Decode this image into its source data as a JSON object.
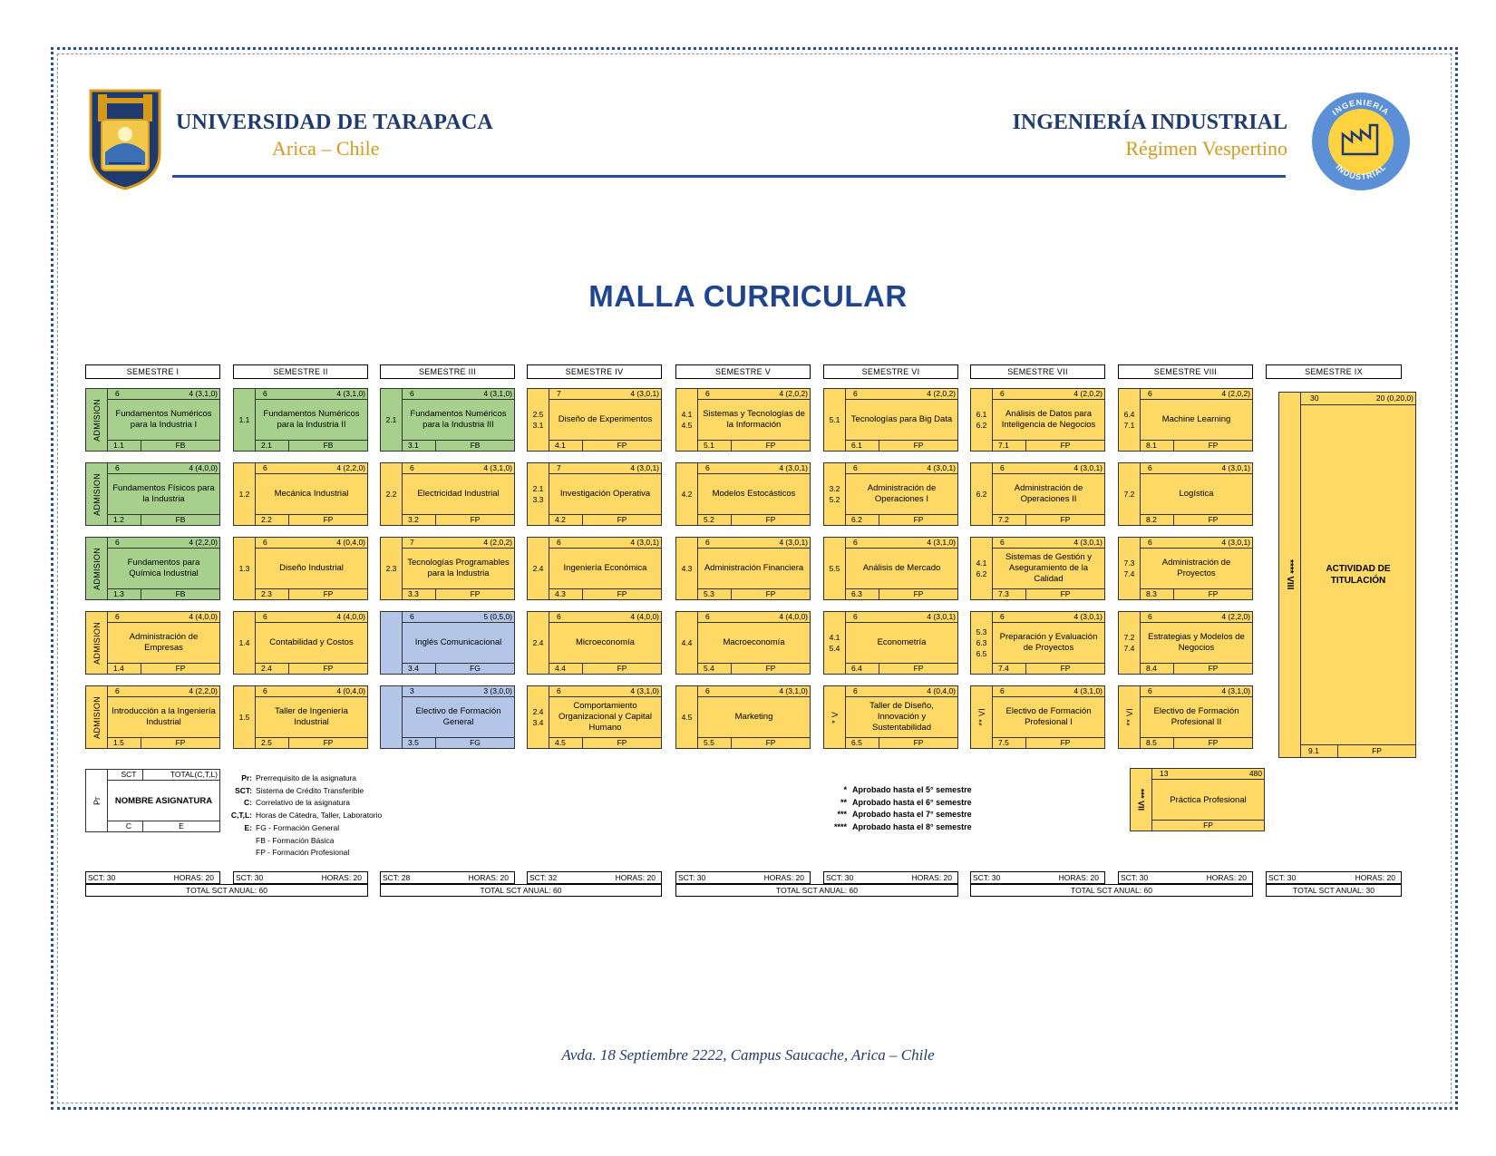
{
  "header": {
    "university": "UNIVERSIDAD DE TARAPACA",
    "location": "Arica – Chile",
    "program": "INGENIERÍA INDUSTRIAL",
    "regime": "Régimen Vespertino",
    "logo_right_text_top": "INGENIERIA",
    "logo_right_text_bottom": "INDUSTRIAL"
  },
  "title": "MALLA CURRICULAR",
  "semesters": [
    "SEMESTRE I",
    "SEMESTRE II",
    "SEMESTRE III",
    "SEMESTRE IV",
    "SEMESTRE V",
    "SEMESTRE VI",
    "SEMESTRE VII",
    "SEMESTRE VIII",
    "SEMESTRE IX"
  ],
  "courses": [
    {
      "col": 0,
      "row": 0,
      "color": "green",
      "left": "ADMISION",
      "vertical": true,
      "sct": "6",
      "hours": "4 (3,1,0)",
      "name": "Fundamentos Numéricos para la Industria I",
      "code": "1.1",
      "cat": "FB"
    },
    {
      "col": 0,
      "row": 1,
      "color": "green",
      "left": "ADMISION",
      "vertical": true,
      "sct": "6",
      "hours": "4 (4,0,0)",
      "name": "Fundamentos Físicos para la Industria",
      "code": "1.2",
      "cat": "FB"
    },
    {
      "col": 0,
      "row": 2,
      "color": "green",
      "left": "ADMISION",
      "vertical": true,
      "sct": "6",
      "hours": "4 (2,2,0)",
      "name": "Fundamentos para Química Industrial",
      "code": "1.3",
      "cat": "FB"
    },
    {
      "col": 0,
      "row": 3,
      "color": "yellow",
      "left": "ADMISION",
      "vertical": true,
      "sct": "6",
      "hours": "4 (4,0,0)",
      "name": "Administración de Empresas",
      "code": "1.4",
      "cat": "FP"
    },
    {
      "col": 0,
      "row": 4,
      "color": "yellow",
      "left": "ADMISION",
      "vertical": true,
      "sct": "6",
      "hours": "4 (2,2,0)",
      "name": "Introducción a la Ingeniería Industrial",
      "code": "1.5",
      "cat": "FP"
    },
    {
      "col": 1,
      "row": 0,
      "color": "green",
      "left": "1.1",
      "vertical": false,
      "sct": "6",
      "hours": "4 (3,1,0)",
      "name": "Fundamentos Numéricos para la Industria II",
      "code": "2.1",
      "cat": "FB"
    },
    {
      "col": 1,
      "row": 1,
      "color": "yellow",
      "left": "1.2",
      "vertical": false,
      "sct": "6",
      "hours": "4 (2,2,0)",
      "name": "Mecánica Industrial",
      "code": "2.2",
      "cat": "FP"
    },
    {
      "col": 1,
      "row": 2,
      "color": "yellow",
      "left": "1.3",
      "vertical": false,
      "sct": "6",
      "hours": "4 (0,4,0)",
      "name": "Diseño Industrial",
      "code": "2.3",
      "cat": "FP"
    },
    {
      "col": 1,
      "row": 3,
      "color": "yellow",
      "left": "1.4",
      "vertical": false,
      "sct": "6",
      "hours": "4 (4,0,0)",
      "name": "Contabilidad y Costos",
      "code": "2.4",
      "cat": "FP"
    },
    {
      "col": 1,
      "row": 4,
      "color": "yellow",
      "left": "1.5",
      "vertical": false,
      "sct": "6",
      "hours": "4 (0,4,0)",
      "name": "Taller de Ingeniería Industrial",
      "code": "2.5",
      "cat": "FP"
    },
    {
      "col": 2,
      "row": 0,
      "color": "green",
      "left": "2.1",
      "vertical": false,
      "sct": "6",
      "hours": "4 (3,1,0)",
      "name": "Fundamentos Numéricos para la Industria III",
      "code": "3.1",
      "cat": "FB"
    },
    {
      "col": 2,
      "row": 1,
      "color": "yellow",
      "left": "2.2",
      "vertical": false,
      "sct": "6",
      "hours": "4 (3,1,0)",
      "name": "Electricidad Industrial",
      "code": "3.2",
      "cat": "FP"
    },
    {
      "col": 2,
      "row": 2,
      "color": "yellow",
      "left": "2.3",
      "vertical": false,
      "sct": "7",
      "hours": "4 (2,0,2)",
      "name": "Tecnologías Programables para la Industria",
      "code": "3.3",
      "cat": "FP"
    },
    {
      "col": 2,
      "row": 3,
      "color": "blue",
      "left": "",
      "vertical": false,
      "sct": "6",
      "hours": "5 (0,5,0)",
      "name": "Inglés Comunicacional",
      "code": "3.4",
      "cat": "FG"
    },
    {
      "col": 2,
      "row": 4,
      "color": "blue",
      "left": "",
      "vertical": false,
      "sct": "3",
      "hours": "3 (3,0,0)",
      "name": "Electivo de Formación General",
      "code": "3.5",
      "cat": "FG"
    },
    {
      "col": 3,
      "row": 0,
      "color": "yellow",
      "left": "2.5 3.1",
      "vertical": false,
      "sct": "7",
      "hours": "4 (3,0,1)",
      "name": "Diseño de Experimentos",
      "code": "4.1",
      "cat": "FP"
    },
    {
      "col": 3,
      "row": 1,
      "color": "yellow",
      "left": "2.1 3.3",
      "vertical": false,
      "sct": "7",
      "hours": "4 (3,0,1)",
      "name": "Investigación Operativa",
      "code": "4.2",
      "cat": "FP"
    },
    {
      "col": 3,
      "row": 2,
      "color": "yellow",
      "left": "2.4",
      "vertical": false,
      "sct": "6",
      "hours": "4 (3,0,1)",
      "name": "Ingeniería Económica",
      "code": "4.3",
      "cat": "FP"
    },
    {
      "col": 3,
      "row": 3,
      "color": "yellow",
      "left": "2.4",
      "vertical": false,
      "sct": "6",
      "hours": "4 (4,0,0)",
      "name": "Microeconomía",
      "code": "4.4",
      "cat": "FP"
    },
    {
      "col": 3,
      "row": 4,
      "color": "yellow",
      "left": "2.4 3.4",
      "vertical": false,
      "sct": "6",
      "hours": "4 (3,1,0)",
      "name": "Comportamiento Organizacional y Capital Humano",
      "code": "4.5",
      "cat": "FP"
    },
    {
      "col": 4,
      "row": 0,
      "color": "yellow",
      "left": "4.1 4.5",
      "vertical": false,
      "sct": "6",
      "hours": "4 (2,0,2)",
      "name": "Sistemas y Tecnologías de la Información",
      "code": "5.1",
      "cat": "FP"
    },
    {
      "col": 4,
      "row": 1,
      "color": "yellow",
      "left": "4.2",
      "vertical": false,
      "sct": "6",
      "hours": "4 (3,0,1)",
      "name": "Modelos Estocásticos",
      "code": "5.2",
      "cat": "FP"
    },
    {
      "col": 4,
      "row": 2,
      "color": "yellow",
      "left": "4.3",
      "vertical": false,
      "sct": "6",
      "hours": "4 (3,0,1)",
      "name": "Administración Financiera",
      "code": "5.3",
      "cat": "FP"
    },
    {
      "col": 4,
      "row": 3,
      "color": "yellow",
      "left": "4.4",
      "vertical": false,
      "sct": "6",
      "hours": "4 (4,0,0)",
      "name": "Macroeconomía",
      "code": "5.4",
      "cat": "FP"
    },
    {
      "col": 4,
      "row": 4,
      "color": "yellow",
      "left": "4.5",
      "vertical": false,
      "sct": "6",
      "hours": "4 (3,1,0)",
      "name": "Marketing",
      "code": "5.5",
      "cat": "FP"
    },
    {
      "col": 5,
      "row": 0,
      "color": "yellow",
      "left": "5.1",
      "vertical": false,
      "sct": "6",
      "hours": "4 (2,0,2)",
      "name": "Tecnologías para Big Data",
      "code": "6.1",
      "cat": "FP"
    },
    {
      "col": 5,
      "row": 1,
      "color": "yellow",
      "left": "3.2 5.2",
      "vertical": false,
      "sct": "6",
      "hours": "4 (3,0,1)",
      "name": "Administración de Operaciones I",
      "code": "6.2",
      "cat": "FP"
    },
    {
      "col": 5,
      "row": 2,
      "color": "yellow",
      "left": "5.5",
      "vertical": false,
      "sct": "6",
      "hours": "4 (3,1,0)",
      "name": "Análisis de Mercado",
      "code": "6.3",
      "cat": "FP"
    },
    {
      "col": 5,
      "row": 3,
      "color": "yellow",
      "left": "4.1 5.4",
      "vertical": false,
      "sct": "6",
      "hours": "4 (3,0,1)",
      "name": "Econometría",
      "code": "6.4",
      "cat": "FP"
    },
    {
      "col": 5,
      "row": 4,
      "color": "yellow",
      "left": "* V",
      "vertical": true,
      "sct": "6",
      "hours": "4 (0,4,0)",
      "name": "Taller de Diseño, Innovación y Sustentabilidad",
      "code": "6.5",
      "cat": "FP"
    },
    {
      "col": 6,
      "row": 0,
      "color": "yellow",
      "left": "6.1 6.2",
      "vertical": false,
      "sct": "6",
      "hours": "4 (2,0,2)",
      "name": "Análisis de Datos para Inteligencia de Negocios",
      "code": "7.1",
      "cat": "FP"
    },
    {
      "col": 6,
      "row": 1,
      "color": "yellow",
      "left": "6.2",
      "vertical": false,
      "sct": "6",
      "hours": "4 (3,0,1)",
      "name": "Administración de Operaciones II",
      "code": "7.2",
      "cat": "FP"
    },
    {
      "col": 6,
      "row": 2,
      "color": "yellow",
      "left": "4.1 6.2",
      "vertical": false,
      "sct": "6",
      "hours": "4 (3,0,1)",
      "name": "Sistemas de Gestión y Aseguramiento de la Calidad",
      "code": "7.3",
      "cat": "FP"
    },
    {
      "col": 6,
      "row": 3,
      "color": "yellow",
      "left": "5.3 6.3 6.5",
      "vertical": false,
      "sct": "6",
      "hours": "4 (3,0,1)",
      "name": "Preparación y Evaluación de Proyectos",
      "code": "7.4",
      "cat": "FP"
    },
    {
      "col": 6,
      "row": 4,
      "color": "yellow",
      "left": "** VI",
      "vertical": true,
      "sct": "6",
      "hours": "4 (3,1,0)",
      "name": "Electivo de Formación Profesional I",
      "code": "7.5",
      "cat": "FP"
    },
    {
      "col": 7,
      "row": 0,
      "color": "yellow",
      "left": "6.4 7.1",
      "vertical": false,
      "sct": "6",
      "hours": "4 (2,0,2)",
      "name": "Machine Learning",
      "code": "8.1",
      "cat": "FP"
    },
    {
      "col": 7,
      "row": 1,
      "color": "yellow",
      "left": "7.2",
      "vertical": false,
      "sct": "6",
      "hours": "4 (3,0,1)",
      "name": "Logística",
      "code": "8.2",
      "cat": "FP"
    },
    {
      "col": 7,
      "row": 2,
      "color": "yellow",
      "left": "7.3 7.4",
      "vertical": false,
      "sct": "6",
      "hours": "4 (3,0,1)",
      "name": "Administración de Proyectos",
      "code": "8.3",
      "cat": "FP"
    },
    {
      "col": 7,
      "row": 3,
      "color": "yellow",
      "left": "7.2 7.4",
      "vertical": false,
      "sct": "6",
      "hours": "4 (2,2,0)",
      "name": "Estrategias y Modelos de Negocios",
      "code": "8.4",
      "cat": "FP"
    },
    {
      "col": 7,
      "row": 4,
      "color": "yellow",
      "left": "** VI",
      "vertical": true,
      "sct": "6",
      "hours": "4 (3,1,0)",
      "name": "Electivo de Formación Profesional II",
      "code": "8.5",
      "cat": "FP"
    }
  ],
  "titulacion": {
    "left": "**** VIII",
    "sct": "30",
    "hours": "20 (0,20,0)",
    "name": "ACTIVIDAD DE TITULACIÓN",
    "code": "9.1",
    "cat": "FP"
  },
  "practica": {
    "left": "*** VII",
    "sct": "13",
    "hours": "480",
    "name": "Práctica Profesional",
    "cat": "FP"
  },
  "legend_box": {
    "left": "Pr",
    "sct": "SCT",
    "hours": "TOTAL(C,T,L)",
    "name": "NOMBRE ASIGNATURA",
    "code": "C",
    "cat": "E"
  },
  "legend": [
    {
      "k": "Pr:",
      "v": "Prerrequisito de la asignatura",
      "bold": true
    },
    {
      "k": "SCT:",
      "v": "Sistema de Crédito Transferible",
      "bold": true
    },
    {
      "k": "C:",
      "v": "Correlativo de la asignatura",
      "bold": true
    },
    {
      "k": "C,T,L:",
      "v": "Horas de Cátedra, Taller, Laboratorio",
      "bold": true
    },
    {
      "k": "E:",
      "v": "FG - Formación General",
      "bold": true
    },
    {
      "k": "",
      "v": "FB - Formación Básica",
      "bold": false
    },
    {
      "k": "",
      "v": "FP - Formación Profesional",
      "bold": false
    }
  ],
  "notes": [
    {
      "k": "*",
      "v": "Aprobado hasta el  5° semestre"
    },
    {
      "k": "**",
      "v": "Aprobado hasta el  6° semestre"
    },
    {
      "k": "***",
      "v": "Aprobado hasta el  7° semestre"
    },
    {
      "k": "****",
      "v": "Aprobado hasta el  8° semestre"
    }
  ],
  "semester_totals": [
    {
      "sct": "SCT: 30",
      "hours": "HORAS: 20"
    },
    {
      "sct": "SCT: 30",
      "hours": "HORAS: 20"
    },
    {
      "sct": "SCT: 28",
      "hours": "HORAS: 20"
    },
    {
      "sct": "SCT: 32",
      "hours": "HORAS: 20"
    },
    {
      "sct": "SCT: 30",
      "hours": "HORAS: 20"
    },
    {
      "sct": "SCT: 30",
      "hours": "HORAS: 20"
    },
    {
      "sct": "SCT: 30",
      "hours": "HORAS: 20"
    },
    {
      "sct": "SCT: 30",
      "hours": "HORAS: 20"
    },
    {
      "sct": "SCT: 30",
      "hours": "HORAS: 20"
    }
  ],
  "year_totals": [
    "TOTAL SCT ANUAL: 60",
    "TOTAL SCT ANUAL: 60",
    "TOTAL SCT ANUAL: 60",
    "TOTAL SCT ANUAL: 60",
    "TOTAL SCT ANUAL: 30"
  ],
  "footer": "Avda. 18  Septiembre 2222, Campus Saucache, Arica – Chile",
  "colors": {
    "green": "#a8d08d",
    "yellow": "#ffd966",
    "blue": "#b4c6e7",
    "title": "#1f4591",
    "accent": "#d69a1a"
  }
}
